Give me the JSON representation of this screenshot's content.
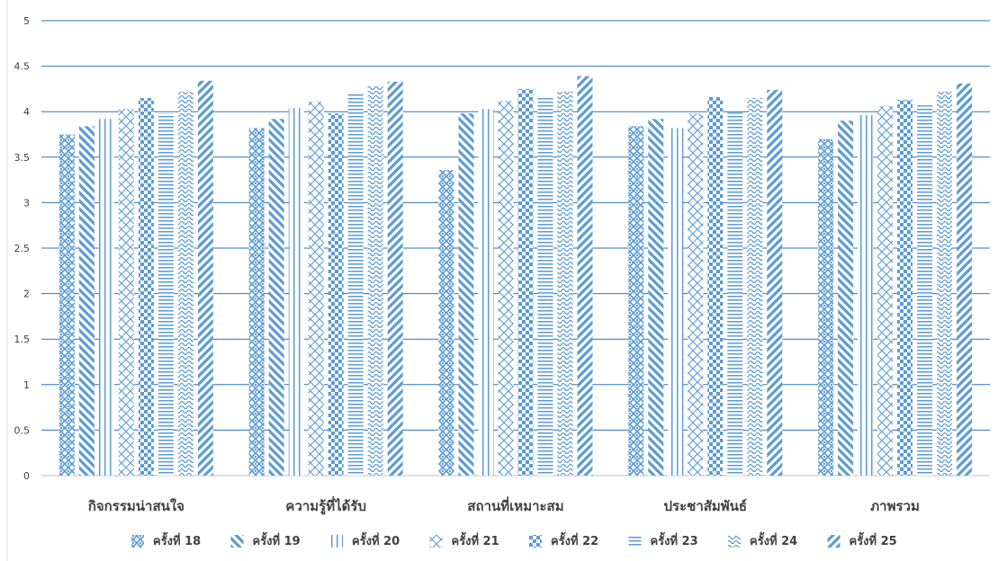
{
  "colors": {
    "accent": "#5B9BD5",
    "grid": "#2E75B6",
    "text": "#404040",
    "axis": "#bfbfbf"
  },
  "chart_data": {
    "type": "bar",
    "title": "",
    "xlabel": "",
    "ylabel": "",
    "ylim": [
      0,
      5
    ],
    "yticks": [
      "0",
      "0.5",
      "1",
      "1.5",
      "2",
      "2.5",
      "3",
      "3.5",
      "4",
      "4.5",
      "5"
    ],
    "grid": true,
    "legend_position": "bottom",
    "categories": [
      "กิจกรรมน่าสนใจ",
      "ความรู้ที่ได้รับ",
      "สถานที่เหมาะสม",
      "ประชาสัมพันธ์",
      "ภาพรวม"
    ],
    "series": [
      {
        "name": "ครั้งที่ 18",
        "pattern": "diamond-weave",
        "values": [
          3.75,
          3.82,
          3.36,
          3.84,
          3.7
        ]
      },
      {
        "name": "ครั้งที่ 19",
        "pattern": "wide-diagonal-down",
        "values": [
          3.84,
          3.92,
          3.98,
          3.92,
          3.9
        ]
      },
      {
        "name": "ครั้งที่ 20",
        "pattern": "vertical-lines",
        "values": [
          3.92,
          4.04,
          4.03,
          3.82,
          3.96
        ]
      },
      {
        "name": "ครั้งที่ 21",
        "pattern": "trellis",
        "values": [
          4.03,
          4.11,
          4.12,
          3.98,
          4.06
        ]
      },
      {
        "name": "ครั้งที่ 22",
        "pattern": "checkerboard",
        "values": [
          4.15,
          3.98,
          4.25,
          4.16,
          4.13
        ]
      },
      {
        "name": "ครั้งที่ 23",
        "pattern": "horizontal-lines",
        "values": [
          3.98,
          4.2,
          4.16,
          3.99,
          4.07
        ]
      },
      {
        "name": "ครั้งที่ 24",
        "pattern": "wave",
        "values": [
          4.22,
          4.28,
          4.22,
          4.15,
          4.22
        ]
      },
      {
        "name": "ครั้งที่ 25",
        "pattern": "wide-diagonal-up",
        "values": [
          4.34,
          4.33,
          4.39,
          4.24,
          4.31
        ]
      }
    ]
  }
}
